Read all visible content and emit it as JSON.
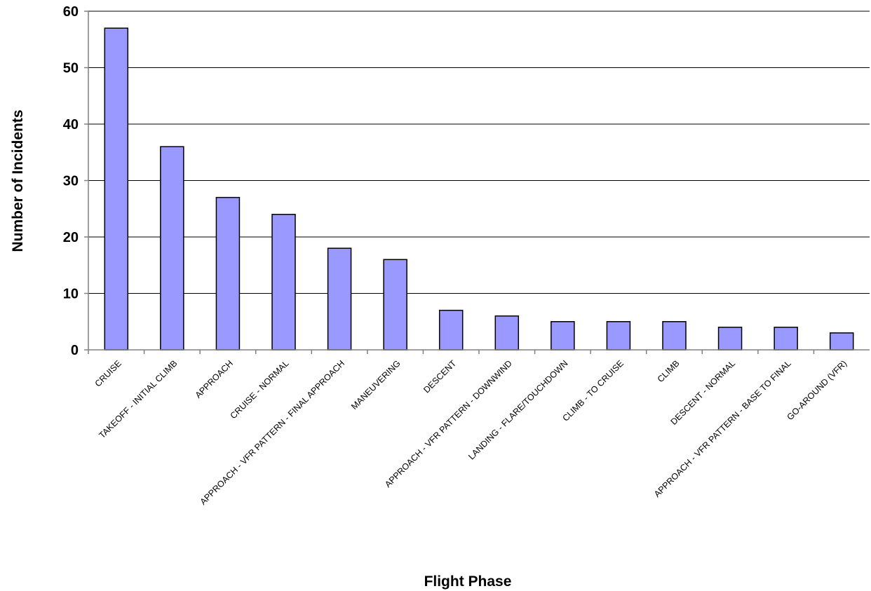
{
  "chart_data": {
    "type": "bar",
    "title": "",
    "xlabel": "Flight Phase",
    "ylabel": "Number of Incidents",
    "ylim": [
      0,
      60
    ],
    "yticks": [
      0,
      10,
      20,
      30,
      40,
      50,
      60
    ],
    "grid": true,
    "legend": "none",
    "categories": [
      "CRUISE",
      "TAKEOFF - INITIAL CLIMB",
      "APPROACH",
      "CRUISE - NORMAL",
      "APPROACH - VFR PATTERN - FINAL APPROACH",
      "MANEUVERING",
      "DESCENT",
      "APPROACH - VFR PATTERN - DOWNWIND",
      "LANDING - FLARE/TOUCHDOWN",
      "CLIMB - TO CRUISE",
      "CLIMB",
      "DESCENT - NORMAL",
      "APPROACH - VFR PATTERN - BASE TO FINAL",
      "GO-AROUND (VFR)"
    ],
    "values": [
      57,
      36,
      27,
      24,
      18,
      16,
      7,
      6,
      5,
      5,
      5,
      4,
      4,
      3
    ],
    "colors": {
      "bar_fill": "#9999ff",
      "bar_stroke": "#000000",
      "grid": "#000000",
      "axis": "#808080",
      "background": "#ffffff"
    }
  }
}
